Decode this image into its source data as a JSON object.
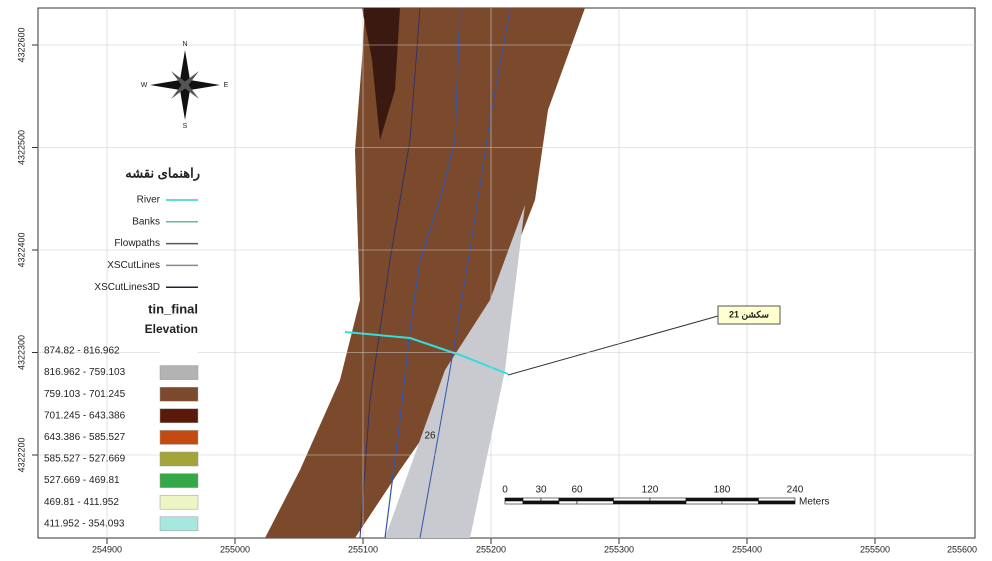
{
  "map": {
    "x_ticks": [
      "254900",
      "255000",
      "255100",
      "255200",
      "255300",
      "255400",
      "255500",
      "255600"
    ],
    "y_ticks": [
      "4322600",
      "4322500",
      "4322400",
      "4322300",
      "4322200"
    ],
    "compass": {
      "n": "N",
      "e": "E",
      "s": "S",
      "w": "W"
    },
    "legend": {
      "title": "راهنمای نقشه",
      "layers": [
        {
          "label": "River",
          "color": "#33cccc"
        },
        {
          "label": "Banks",
          "color": "#66bb99"
        },
        {
          "label": "Flowpaths",
          "color": "#555566"
        },
        {
          "label": "XSCutLines",
          "color": "#888899"
        },
        {
          "label": "XSCutLines3D",
          "color": "#222233"
        }
      ],
      "tin_title": "tin_final",
      "tin_subtitle": "Elevation",
      "classes": [
        {
          "label": "874.82 - 816.962",
          "color": "#ffffff"
        },
        {
          "label": "816.962 - 759.103",
          "color": "#b3b3b3"
        },
        {
          "label": "759.103 - 701.245",
          "color": "#7b4a2c"
        },
        {
          "label": "701.245 - 643.386",
          "color": "#5a1a0a"
        },
        {
          "label": "643.386 - 585.527",
          "color": "#c44a12"
        },
        {
          "label": "585.527 - 527.669",
          "color": "#a4a43a"
        },
        {
          "label": "527.669 - 469.81",
          "color": "#34a846"
        },
        {
          "label": "469.81 - 411.952",
          "color": "#eef5c4"
        },
        {
          "label": "411.952 - 354.093",
          "color": "#a6e8e0"
        }
      ]
    },
    "callout": "سکشن 21",
    "section_label": "26",
    "scale_bar": {
      "labels": [
        "0",
        "30",
        "60",
        "120",
        "180",
        "240"
      ],
      "unit": "Meters"
    }
  }
}
